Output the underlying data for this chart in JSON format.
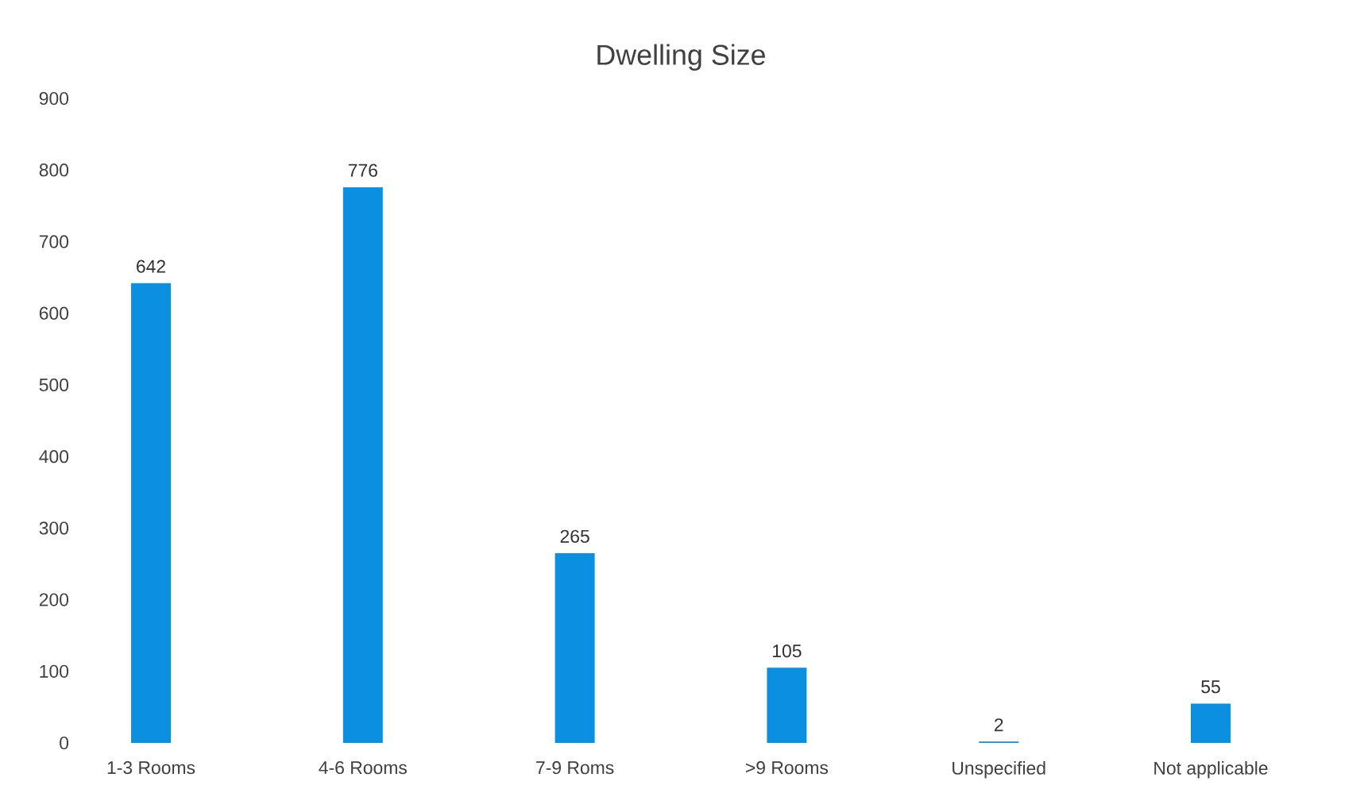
{
  "chart_data": {
    "type": "bar",
    "title": "Dwelling Size",
    "categories": [
      "1-3 Rooms",
      "4-6 Rooms",
      "7-9 Roms",
      ">9 Rooms",
      "Unspecified",
      "Not applicable"
    ],
    "values": [
      642,
      776,
      265,
      105,
      2,
      55
    ],
    "color": "#0b8fe0",
    "ylim": [
      0,
      900
    ],
    "yticks": [
      0,
      100,
      200,
      300,
      400,
      500,
      600,
      700,
      800,
      900
    ],
    "data_labels": true
  }
}
